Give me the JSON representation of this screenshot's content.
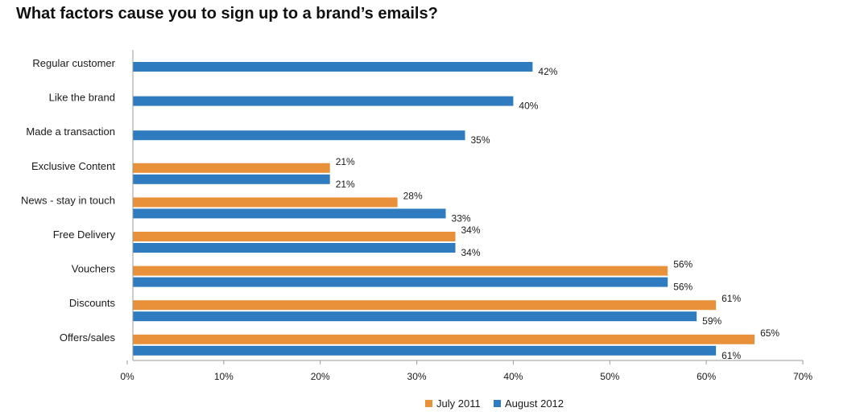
{
  "chart_data": {
    "type": "bar",
    "orientation": "horizontal",
    "title": "What factors cause you to sign up to a brand’s emails?",
    "categories": [
      "Regular customer",
      "Like the brand",
      "Made a transaction",
      "Exclusive Content",
      "News - stay in touch",
      "Free Delivery",
      "Vouchers",
      "Discounts",
      "Offers/sales"
    ],
    "series": [
      {
        "name": "July 2011",
        "color": "#E8913A",
        "values": [
          null,
          null,
          null,
          21,
          28,
          34,
          56,
          61,
          65
        ],
        "labels": [
          "",
          "",
          "",
          "21%",
          "28%",
          "34%",
          "56%",
          "61%",
          "65%"
        ]
      },
      {
        "name": "August 2012",
        "color": "#2E7BBF",
        "values": [
          42,
          40,
          35,
          21,
          33,
          34,
          56,
          59,
          61
        ],
        "labels": [
          "42%",
          "40%",
          "35%",
          "21%",
          "33%",
          "34%",
          "56%",
          "59%",
          "61%"
        ]
      }
    ],
    "xlim": [
      0,
      70
    ],
    "xticks": [
      0,
      10,
      20,
      30,
      40,
      50,
      60,
      70
    ],
    "xtick_labels": [
      "0%",
      "10%",
      "20%",
      "30%",
      "40%",
      "50%",
      "60%",
      "70%"
    ],
    "xlabel": "",
    "ylabel": "",
    "grid": false,
    "legend_position": "bottom-center",
    "legend": [
      "July 2011",
      "August 2012"
    ]
  }
}
